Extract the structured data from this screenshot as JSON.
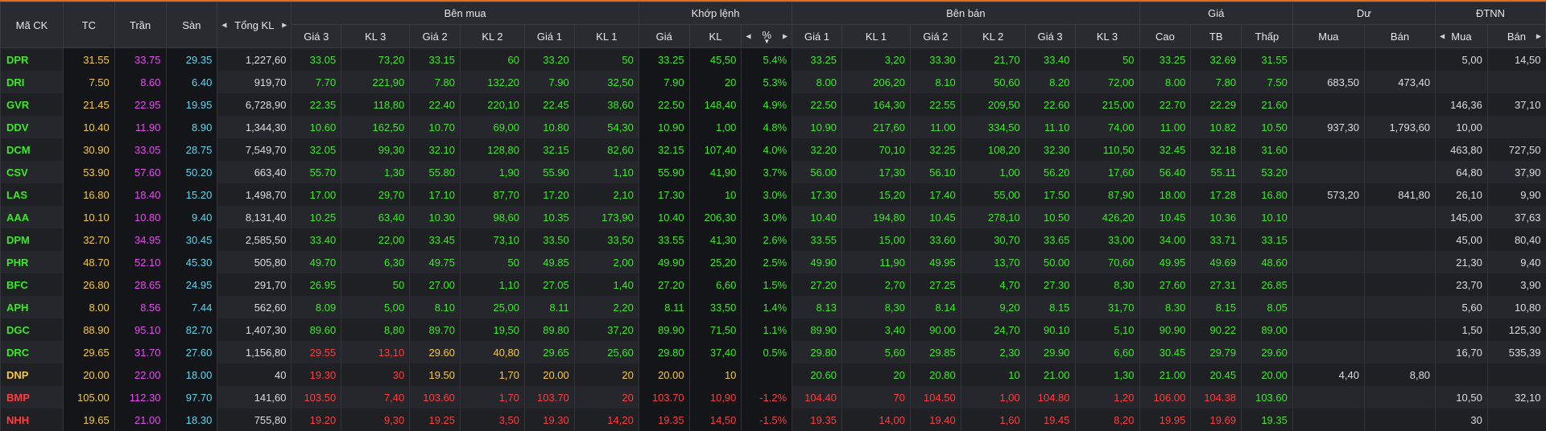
{
  "headers": {
    "ma_ck": "Mã CK",
    "tc": "TC",
    "tran": "Trần",
    "san": "Sàn",
    "tong_kl": "Tổng KL",
    "ben_mua": "Bên mua",
    "khop_lenh": "Khớp lệnh",
    "ben_ban": "Bên bán",
    "gia": "Giá",
    "du": "Dư",
    "dtnn": "ĐTNN",
    "buy_cols": [
      "Giá 3",
      "KL 3",
      "Giá 2",
      "KL 2",
      "Giá 1",
      "KL 1"
    ],
    "match_cols": [
      "Giá",
      "KL",
      "%"
    ],
    "sell_cols": [
      "Giá 1",
      "KL 1",
      "Giá 2",
      "KL 2",
      "Giá 3",
      "KL 3"
    ],
    "price_cols": [
      "Cao",
      "TB",
      "Thấp"
    ],
    "du_cols": [
      "Mua",
      "Bán"
    ],
    "dtnn_cols": [
      "Mua",
      "Bán"
    ]
  },
  "colors": {
    "ref": "#f3c844",
    "ceil": "#e64af1",
    "floor": "#5fd6ee",
    "up": "#3fe62d",
    "down": "#ff3d3d",
    "accent": "#e4691f"
  },
  "rows": [
    {
      "sym": "DPR",
      "tc": "31.55",
      "tran": "33.75",
      "san": "29.35",
      "tkl": "1,227,60",
      "b3": "33.05",
      "bk3": "73,20",
      "b2": "33.15",
      "bk2": "60",
      "b1": "33.20",
      "bk1": "50",
      "mp": "33.25",
      "mk": "45,50",
      "pct": "5.4%",
      "s1": "33.25",
      "sk1": "3,20",
      "s2": "33.30",
      "sk2": "21,70",
      "s3": "33.40",
      "sk3": "50",
      "hi": "33.25",
      "avg": "32.69",
      "lo": "31.55",
      "dm": "",
      "db": "",
      "fm": "5,00",
      "fb": "14,50",
      "c": "uuuuuuuuuuuuuuuuuuuuur"
    },
    {
      "sym": "DRI",
      "tc": "7.50",
      "tran": "8.60",
      "san": "6.40",
      "tkl": "919,70",
      "b3": "7.70",
      "bk3": "221,90",
      "b2": "7.80",
      "bk2": "132,20",
      "b1": "7.90",
      "bk1": "32,50",
      "mp": "7.90",
      "mk": "20",
      "pct": "5.3%",
      "s1": "8.00",
      "sk1": "206,20",
      "s2": "8.10",
      "sk2": "50,60",
      "s3": "8.20",
      "sk3": "72,00",
      "hi": "8.00",
      "avg": "7.80",
      "lo": "7.50",
      "dm": "683,50",
      "db": "473,40",
      "fm": "",
      "fb": "",
      "c": "uuuuuuuuuuuuuuuuuuuuur"
    },
    {
      "sym": "GVR",
      "tc": "21.45",
      "tran": "22.95",
      "san": "19.95",
      "tkl": "6,728,90",
      "b3": "22.35",
      "bk3": "118,80",
      "b2": "22.40",
      "bk2": "220,10",
      "b1": "22.45",
      "bk1": "38,60",
      "mp": "22.50",
      "mk": "148,40",
      "pct": "4.9%",
      "s1": "22.50",
      "sk1": "164,30",
      "s2": "22.55",
      "sk2": "209,50",
      "s3": "22.60",
      "sk3": "215,00",
      "hi": "22.70",
      "avg": "22.29",
      "lo": "21.60",
      "dm": "",
      "db": "",
      "fm": "146,36",
      "fb": "37,10",
      "c": "uuuuuuuuuuuuuuuuuuuuuu"
    },
    {
      "sym": "DDV",
      "tc": "10.40",
      "tran": "11.90",
      "san": "8.90",
      "tkl": "1,344,30",
      "b3": "10.60",
      "bk3": "162,50",
      "b2": "10.70",
      "bk2": "69,00",
      "b1": "10.80",
      "bk1": "54,30",
      "mp": "10.90",
      "mk": "1,00",
      "pct": "4.8%",
      "s1": "10.90",
      "sk1": "217,60",
      "s2": "11.00",
      "sk2": "334,50",
      "s3": "11.10",
      "sk3": "74,00",
      "hi": "11.00",
      "avg": "10.82",
      "lo": "10.50",
      "dm": "937,30",
      "db": "1,793,60",
      "fm": "10,00",
      "fb": "",
      "c": "uuuuuuuuuuuuuuuuuuuuuu"
    },
    {
      "sym": "DCM",
      "tc": "30.90",
      "tran": "33.05",
      "san": "28.75",
      "tkl": "7,549,70",
      "b3": "32.05",
      "bk3": "99,30",
      "b2": "32.10",
      "bk2": "128,80",
      "b1": "32.15",
      "bk1": "82,60",
      "mp": "32.15",
      "mk": "107,40",
      "pct": "4.0%",
      "s1": "32.20",
      "sk1": "70,10",
      "s2": "32.25",
      "sk2": "108,20",
      "s3": "32.30",
      "sk3": "110,50",
      "hi": "32.45",
      "avg": "32.18",
      "lo": "31.60",
      "dm": "",
      "db": "",
      "fm": "463,80",
      "fb": "727,50",
      "c": "uuuuuuuuuuuuuuuuuuuuuu"
    },
    {
      "sym": "CSV",
      "tc": "53.90",
      "tran": "57.60",
      "san": "50.20",
      "tkl": "663,40",
      "b3": "55.70",
      "bk3": "1,30",
      "b2": "55.80",
      "bk2": "1,90",
      "b1": "55.90",
      "bk1": "1,10",
      "mp": "55.90",
      "mk": "41,90",
      "pct": "3.7%",
      "s1": "56.00",
      "sk1": "17,30",
      "s2": "56.10",
      "sk2": "1,00",
      "s3": "56.20",
      "sk3": "17,60",
      "hi": "56.40",
      "avg": "55.11",
      "lo": "53.20",
      "dm": "",
      "db": "",
      "fm": "64,80",
      "fb": "37,90",
      "c": "uuuuuuuuuuuuuuuuuuuuud"
    },
    {
      "sym": "LAS",
      "tc": "16.80",
      "tran": "18.40",
      "san": "15.20",
      "tkl": "1,498,70",
      "b3": "17.00",
      "bk3": "29,70",
      "b2": "17.10",
      "bk2": "87,70",
      "b1": "17.20",
      "bk1": "2,10",
      "mp": "17.30",
      "mk": "10",
      "pct": "3.0%",
      "s1": "17.30",
      "sk1": "15,20",
      "s2": "17.40",
      "sk2": "55,00",
      "s3": "17.50",
      "sk3": "87,90",
      "hi": "18.00",
      "avg": "17.28",
      "lo": "16.80",
      "dm": "573,20",
      "db": "841,80",
      "fm": "26,10",
      "fb": "9,90",
      "c": "uuuuuuuuuuuuuuuuuuuuur"
    },
    {
      "sym": "AAA",
      "tc": "10.10",
      "tran": "10.80",
      "san": "9.40",
      "tkl": "8,131,40",
      "b3": "10.25",
      "bk3": "63,40",
      "b2": "10.30",
      "bk2": "98,60",
      "b1": "10.35",
      "bk1": "173,90",
      "mp": "10.40",
      "mk": "206,30",
      "pct": "3.0%",
      "s1": "10.40",
      "sk1": "194,80",
      "s2": "10.45",
      "sk2": "278,10",
      "s3": "10.50",
      "sk3": "426,20",
      "hi": "10.45",
      "avg": "10.36",
      "lo": "10.10",
      "dm": "",
      "db": "",
      "fm": "145,00",
      "fb": "37,63",
      "c": "uuuuuuuuuuuuuuuuuuuuur"
    },
    {
      "sym": "DPM",
      "tc": "32.70",
      "tran": "34.95",
      "san": "30.45",
      "tkl": "2,585,50",
      "b3": "33.40",
      "bk3": "22,00",
      "b2": "33.45",
      "bk2": "73,10",
      "b1": "33.50",
      "bk1": "33,50",
      "mp": "33.55",
      "mk": "41,30",
      "pct": "2.6%",
      "s1": "33.55",
      "sk1": "15,00",
      "s2": "33.60",
      "sk2": "30,70",
      "s3": "33.65",
      "sk3": "33,00",
      "hi": "34.00",
      "avg": "33.71",
      "lo": "33.15",
      "dm": "",
      "db": "",
      "fm": "45,00",
      "fb": "80,40",
      "c": "uuuuuuuuuuuuuuuuuuuuuu"
    },
    {
      "sym": "PHR",
      "tc": "48.70",
      "tran": "52.10",
      "san": "45.30",
      "tkl": "505,80",
      "b3": "49.70",
      "bk3": "6,30",
      "b2": "49.75",
      "bk2": "50",
      "b1": "49.85",
      "bk1": "2,00",
      "mp": "49.90",
      "mk": "25,20",
      "pct": "2.5%",
      "s1": "49.90",
      "sk1": "11,90",
      "s2": "49.95",
      "sk2": "13,70",
      "s3": "50.00",
      "sk3": "70,60",
      "hi": "49.95",
      "avg": "49.69",
      "lo": "48.60",
      "dm": "",
      "db": "",
      "fm": "21,30",
      "fb": "9,40",
      "c": "uuuuuuuuuuuuuuuuuuuuud"
    },
    {
      "sym": "BFC",
      "tc": "26.80",
      "tran": "28.65",
      "san": "24.95",
      "tkl": "291,70",
      "b3": "26.95",
      "bk3": "50",
      "b2": "27.00",
      "bk2": "1,10",
      "b1": "27.05",
      "bk1": "1,40",
      "mp": "27.20",
      "mk": "6,60",
      "pct": "1.5%",
      "s1": "27.20",
      "sk1": "2,70",
      "s2": "27.25",
      "sk2": "4,70",
      "s3": "27.30",
      "sk3": "8,30",
      "hi": "27.60",
      "avg": "27.31",
      "lo": "26.85",
      "dm": "",
      "db": "",
      "fm": "23,70",
      "fb": "3,90",
      "c": "uuuuuuuuuuuuuuuuuuuuuu"
    },
    {
      "sym": "APH",
      "tc": "8.00",
      "tran": "8.56",
      "san": "7.44",
      "tkl": "562,60",
      "b3": "8.09",
      "bk3": "5,00",
      "b2": "8.10",
      "bk2": "25,00",
      "b1": "8.11",
      "bk1": "2,20",
      "mp": "8.11",
      "mk": "33,50",
      "pct": "1.4%",
      "s1": "8.13",
      "sk1": "8,30",
      "s2": "8.14",
      "sk2": "9,20",
      "s3": "8.15",
      "sk3": "31,70",
      "hi": "8.30",
      "avg": "8.15",
      "lo": "8.05",
      "dm": "",
      "db": "",
      "fm": "5,60",
      "fb": "10,80",
      "c": "uuuuuuuuuuuuuuuuuuuuuu"
    },
    {
      "sym": "DGC",
      "tc": "88.90",
      "tran": "95.10",
      "san": "82.70",
      "tkl": "1,407,30",
      "b3": "89.60",
      "bk3": "8,80",
      "b2": "89.70",
      "bk2": "19,50",
      "b1": "89.80",
      "bk1": "37,20",
      "mp": "89.90",
      "mk": "71,50",
      "pct": "1.1%",
      "s1": "89.90",
      "sk1": "3,40",
      "s2": "90.00",
      "sk2": "24,70",
      "s3": "90.10",
      "sk3": "5,10",
      "hi": "90.90",
      "avg": "90.22",
      "lo": "89.00",
      "dm": "",
      "db": "",
      "fm": "1,50",
      "fb": "125,30",
      "c": "uuuuuuuuuuuuuuuuuuuuuu"
    },
    {
      "sym": "DRC",
      "tc": "29.65",
      "tran": "31.70",
      "san": "27.60",
      "tkl": "1,156,80",
      "b3": "29.55",
      "bk3": "13,10",
      "b2": "29.60",
      "bk2": "40,80",
      "b1": "29.65",
      "bk1": "25,60",
      "mp": "29.80",
      "mk": "37,40",
      "pct": "0.5%",
      "s1": "29.80",
      "sk1": "5,60",
      "s2": "29.85",
      "sk2": "2,30",
      "s3": "29.90",
      "sk3": "6,60",
      "hi": "30.45",
      "avg": "29.79",
      "lo": "29.60",
      "dm": "",
      "db": "",
      "fm": "16,70",
      "fb": "535,39",
      "c": "uddddrruuuuuuuuuuuuuud"
    },
    {
      "sym": "DNP",
      "tc": "20.00",
      "tran": "22.00",
      "san": "18.00",
      "tkl": "40",
      "b3": "19.30",
      "bk3": "30",
      "b2": "19.50",
      "bk2": "1,70",
      "b1": "20.00",
      "bk1": "20",
      "mp": "20.00",
      "mk": "10",
      "pct": "",
      "s1": "20.60",
      "sk1": "20",
      "s2": "20.80",
      "sk2": "10",
      "s3": "21.00",
      "sk3": "1,30",
      "hi": "21.00",
      "avg": "20.45",
      "lo": "20.00",
      "dm": "4,40",
      "db": "8,80",
      "fm": "",
      "fb": "",
      "c": "rddddrrrrrruuuuuuuuuur"
    },
    {
      "sym": "BMP",
      "tc": "105.00",
      "tran": "112.30",
      "san": "97.70",
      "tkl": "141,60",
      "b3": "103.50",
      "bk3": "7,40",
      "b2": "103.60",
      "bk2": "1,70",
      "b1": "103.70",
      "bk1": "20",
      "mp": "103.70",
      "mk": "10,90",
      "pct": "-1.2%",
      "s1": "104.40",
      "sk1": "70",
      "s2": "104.50",
      "sk2": "1,00",
      "s3": "104.80",
      "sk3": "1,20",
      "hi": "106.00",
      "avg": "104.38",
      "lo": "103.60",
      "dm": "",
      "db": "",
      "fm": "10,50",
      "fb": "32,10",
      "c": "ddddddddddddddddddddudd"
    },
    {
      "sym": "NHH",
      "tc": "19.65",
      "tran": "21.00",
      "san": "18.30",
      "tkl": "755,80",
      "b3": "19.20",
      "bk3": "9,30",
      "b2": "19.25",
      "bk2": "3,50",
      "b1": "19.30",
      "bk1": "14,20",
      "mp": "19.35",
      "mk": "14,50",
      "pct": "-1.5%",
      "s1": "19.35",
      "sk1": "14,00",
      "s2": "19.40",
      "sk2": "1,60",
      "s3": "19.45",
      "sk3": "8,20",
      "hi": "19.95",
      "avg": "19.69",
      "lo": "19.35",
      "dm": "",
      "db": "",
      "fm": "30",
      "fb": "",
      "c": "ddddddddddddddddddddudd"
    }
  ]
}
